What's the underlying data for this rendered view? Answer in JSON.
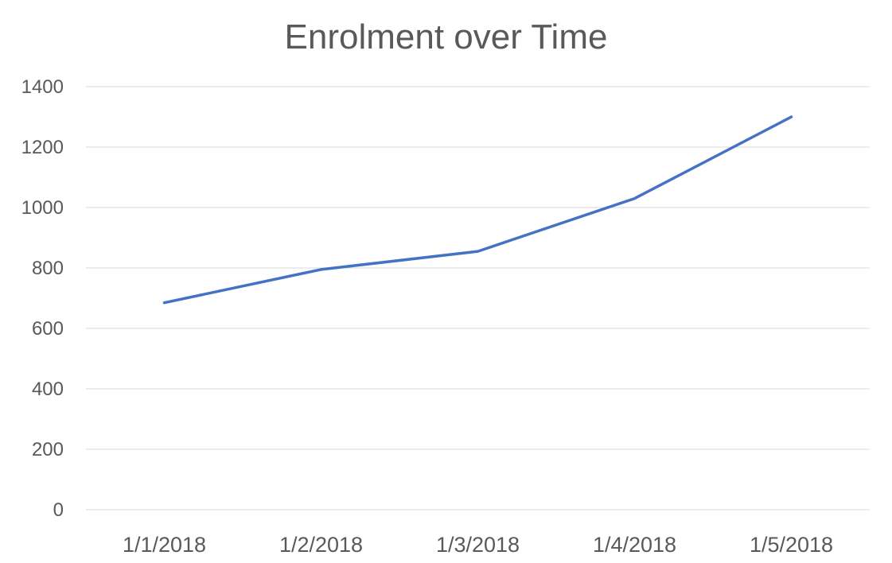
{
  "chart_data": {
    "type": "line",
    "title": "Enrolment over Time",
    "xlabel": "",
    "ylabel": "",
    "categories": [
      "1/1/2018",
      "1/2/2018",
      "1/3/2018",
      "1/4/2018",
      "1/5/2018"
    ],
    "series": [
      {
        "values": [
          685,
          795,
          855,
          1030,
          1300
        ],
        "color": "#4472C4"
      }
    ],
    "ylim": [
      0,
      1400
    ],
    "yticks": [
      0,
      200,
      400,
      600,
      800,
      1000,
      1200,
      1400
    ],
    "grid": true,
    "legend": "none"
  }
}
